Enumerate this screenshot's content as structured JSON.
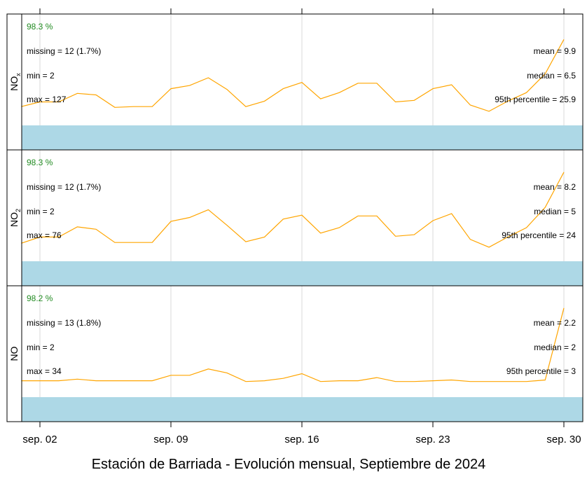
{
  "chart_data": {
    "type": "line",
    "title": "Estación de Barriada - Evolución mensual, Septiembre de 2024",
    "x": [
      "2024-09-01",
      "2024-09-02",
      "2024-09-03",
      "2024-09-04",
      "2024-09-05",
      "2024-09-06",
      "2024-09-07",
      "2024-09-08",
      "2024-09-09",
      "2024-09-10",
      "2024-09-11",
      "2024-09-12",
      "2024-09-13",
      "2024-09-14",
      "2024-09-15",
      "2024-09-16",
      "2024-09-17",
      "2024-09-18",
      "2024-09-19",
      "2024-09-20",
      "2024-09-21",
      "2024-09-22",
      "2024-09-23",
      "2024-09-24",
      "2024-09-25",
      "2024-09-26",
      "2024-09-27",
      "2024-09-28",
      "2024-09-29",
      "2024-09-30"
    ],
    "x_ticks": [
      "sep. 02",
      "sep. 09",
      "sep. 16",
      "sep. 23",
      "sep. 30"
    ],
    "x_tick_dates": [
      "2024-09-02",
      "2024-09-09",
      "2024-09-16",
      "2024-09-23",
      "2024-09-30"
    ],
    "line_color": "#FFA500",
    "band_color": "#ADD8E6",
    "capture_color": "#228B22",
    "panels": [
      {
        "name": "NOx",
        "label_main": "NO",
        "label_sub": "x",
        "ylim": [
          0,
          13
        ],
        "capture": "98.3 %",
        "missing": "missing = 12 (1.7%)",
        "min": "min = 2",
        "max": "max = 127",
        "mean": "mean = 9.9",
        "median": "median = 6.5",
        "p95": "95th percentile = 25.9",
        "values": [
          2.4,
          3.0,
          3.0,
          4.1,
          3.9,
          2.3,
          2.4,
          2.4,
          4.7,
          5.1,
          6.1,
          4.6,
          2.4,
          3.1,
          4.7,
          5.5,
          3.4,
          4.2,
          5.4,
          5.4,
          3.0,
          3.2,
          4.7,
          5.2,
          2.6,
          1.8,
          3.1,
          4.2,
          6.6,
          11.0
        ]
      },
      {
        "name": "NO2",
        "label_main": "NO",
        "label_sub": "2",
        "ylim": [
          0,
          13
        ],
        "capture": "98.3 %",
        "missing": "missing = 12 (1.7%)",
        "min": "min = 2",
        "max": "max = 76",
        "mean": "mean = 8.2",
        "median": "median = 5",
        "p95": "95th percentile = 24",
        "values": [
          2.3,
          3.1,
          3.1,
          4.4,
          4.1,
          2.4,
          2.4,
          2.4,
          5.1,
          5.6,
          6.6,
          4.6,
          2.5,
          3.1,
          5.4,
          5.9,
          3.6,
          4.3,
          5.8,
          5.8,
          3.2,
          3.4,
          5.2,
          6.1,
          2.8,
          1.8,
          3.1,
          4.3,
          6.9,
          11.4
        ]
      },
      {
        "name": "NO",
        "label_main": "NO",
        "label_sub": "",
        "ylim": [
          0,
          13
        ],
        "capture": "98.2 %",
        "missing": "missing = 13 (1.8%)",
        "min": "min = 2",
        "max": "max = 34",
        "mean": "mean = 2.2",
        "median": "median = 2",
        "p95": "95th percentile = 3",
        "values": [
          2.1,
          2.1,
          2.1,
          2.3,
          2.1,
          2.1,
          2.1,
          2.1,
          2.8,
          2.8,
          3.6,
          3.1,
          2.0,
          2.1,
          2.4,
          3.0,
          2.0,
          2.1,
          2.1,
          2.5,
          2.0,
          2.0,
          2.1,
          2.2,
          2.0,
          2.0,
          2.0,
          2.0,
          2.2,
          11.4
        ]
      }
    ]
  }
}
